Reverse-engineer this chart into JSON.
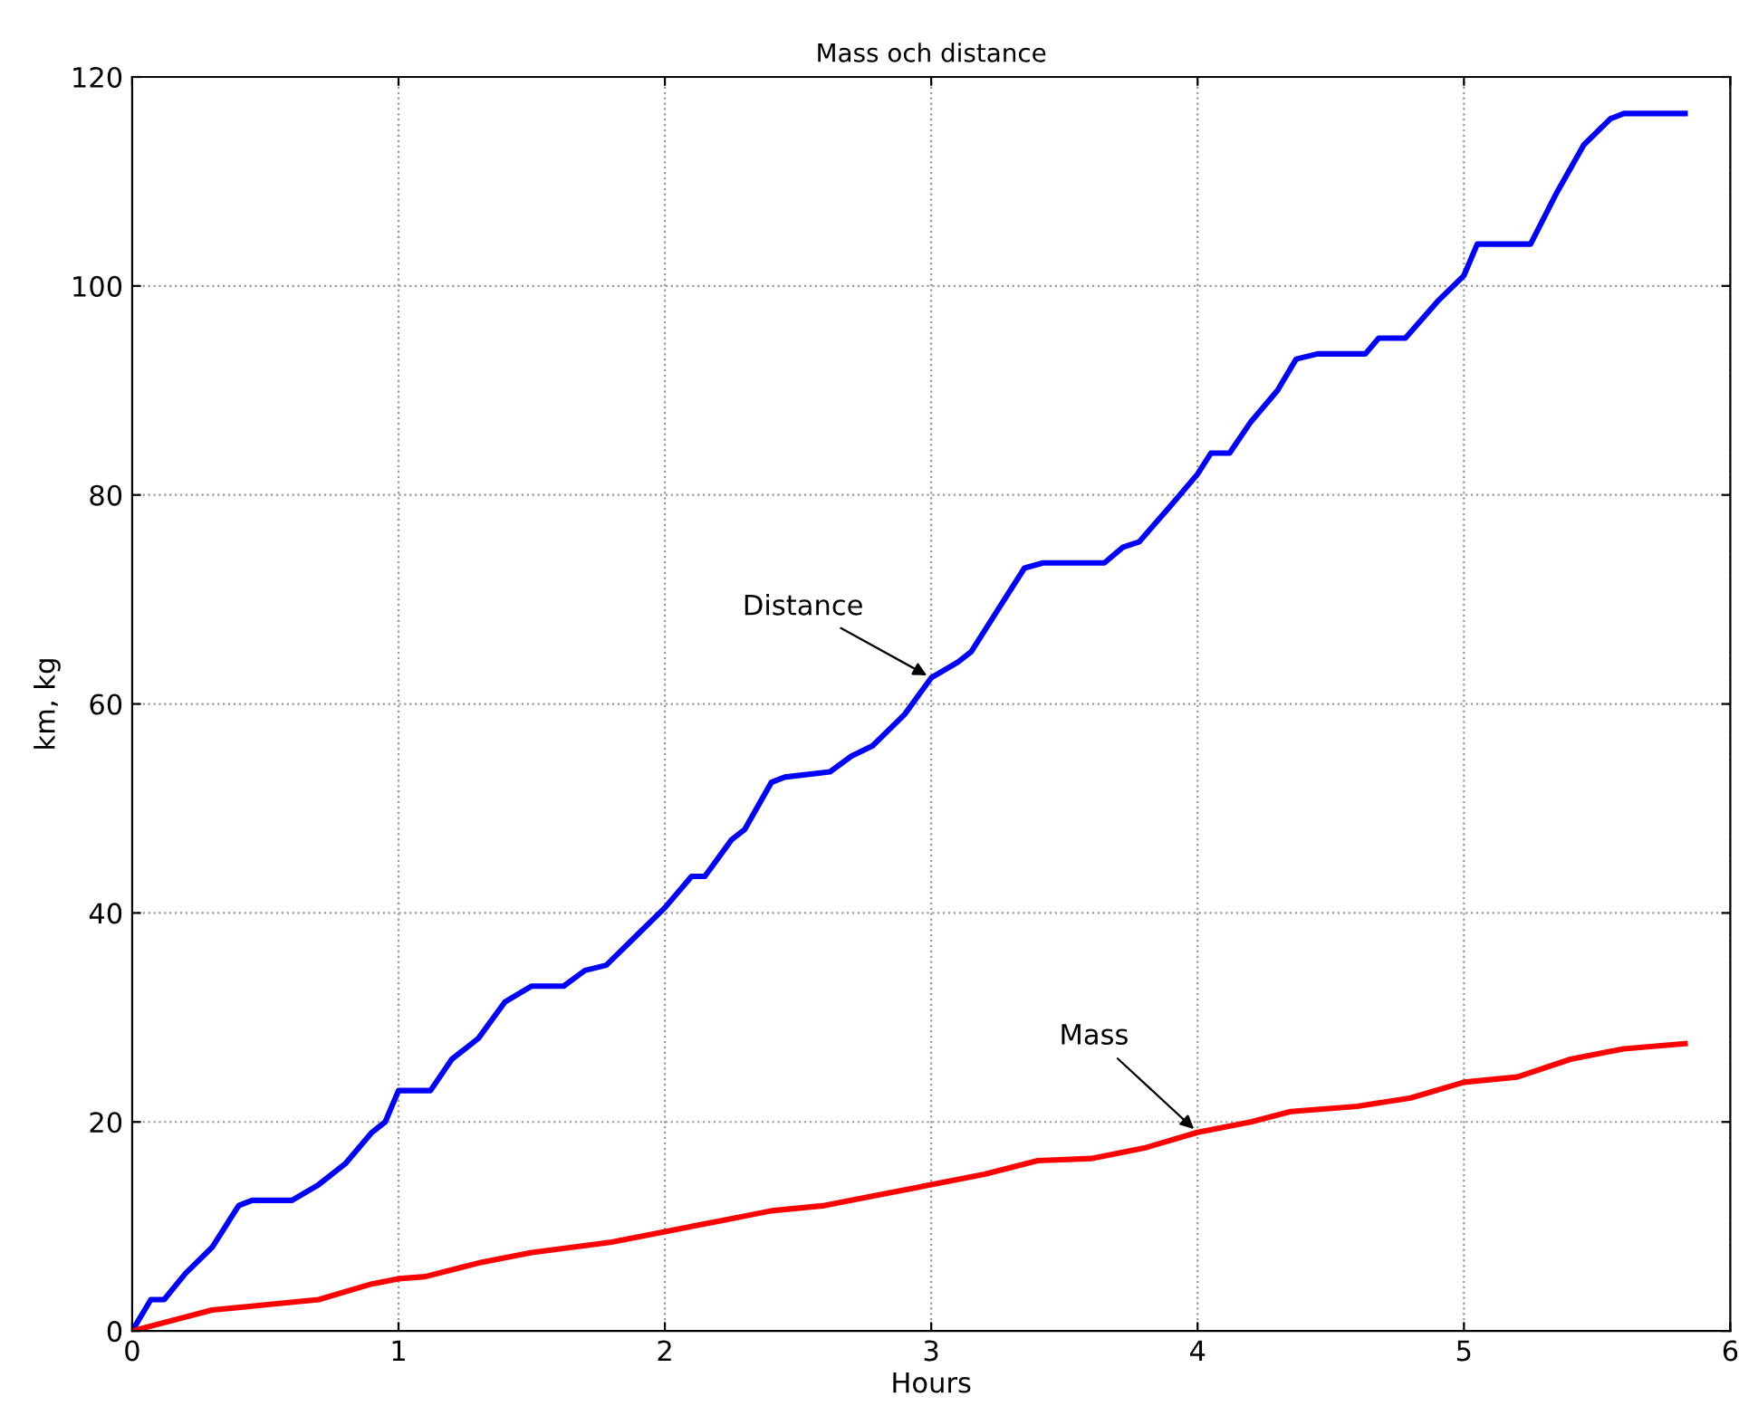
{
  "chart_data": {
    "type": "line",
    "title": "Mass och distance",
    "xlabel": "Hours",
    "ylabel": "km, kg",
    "xlim": [
      0,
      6
    ],
    "ylim": [
      0,
      120
    ],
    "xticks": [
      0,
      1,
      2,
      3,
      4,
      5,
      6
    ],
    "yticks": [
      0,
      20,
      40,
      60,
      80,
      100,
      120
    ],
    "grid": true,
    "line_style": "solid",
    "series": [
      {
        "color": "#0000ff",
        "x": [
          0,
          0.07,
          0.12,
          0.2,
          0.3,
          0.4,
          0.45,
          0.6,
          0.7,
          0.8,
          0.9,
          0.95,
          1.0,
          1.12,
          1.2,
          1.3,
          1.4,
          1.5,
          1.62,
          1.7,
          1.78,
          1.9,
          2.0,
          2.1,
          2.15,
          2.25,
          2.3,
          2.4,
          2.45,
          2.62,
          2.7,
          2.78,
          2.9,
          3.0,
          3.1,
          3.15,
          3.25,
          3.35,
          3.42,
          3.65,
          3.72,
          3.78,
          3.9,
          4.0,
          4.05,
          4.12,
          4.2,
          4.3,
          4.37,
          4.45,
          4.63,
          4.68,
          4.78,
          4.9,
          5.0,
          5.05,
          5.25,
          5.35,
          5.45,
          5.55,
          5.6,
          5.83
        ],
        "values": [
          0,
          3,
          3,
          5.5,
          8,
          12,
          12.5,
          12.5,
          14,
          16,
          19,
          20,
          23,
          23,
          26,
          28,
          31.5,
          33,
          33,
          34.5,
          35,
          38,
          40.5,
          43.5,
          43.5,
          47,
          48,
          52.5,
          53,
          53.5,
          55,
          56,
          59,
          62.5,
          64,
          65,
          69,
          73,
          73.5,
          73.5,
          75,
          75.5,
          79,
          82,
          84,
          84,
          87,
          90,
          93,
          93.5,
          93.5,
          95,
          95,
          98.5,
          101,
          104,
          104,
          109,
          113.5,
          116,
          116.5,
          116.5
        ]
      },
      {
        "color": "#ff0000",
        "x": [
          0,
          0.3,
          0.5,
          0.7,
          0.9,
          1.0,
          1.1,
          1.3,
          1.5,
          1.8,
          2.0,
          2.2,
          2.4,
          2.6,
          2.8,
          3.0,
          3.2,
          3.4,
          3.6,
          3.8,
          4.0,
          4.2,
          4.35,
          4.6,
          4.8,
          5.0,
          5.2,
          5.4,
          5.6,
          5.83
        ],
        "values": [
          0,
          2,
          2.5,
          3,
          4.5,
          5,
          5.2,
          6.5,
          7.5,
          8.5,
          9.5,
          10.5,
          11.5,
          12,
          13,
          14,
          15,
          16.3,
          16.5,
          17.5,
          19,
          20,
          21,
          21.5,
          22.3,
          23.8,
          24.3,
          26,
          27,
          27.5
        ]
      }
    ],
    "annotations": [
      {
        "text": "Distance",
        "x": 3.0,
        "y": 62.5
      },
      {
        "text": "Mass",
        "x": 4.0,
        "y": 19
      }
    ]
  }
}
